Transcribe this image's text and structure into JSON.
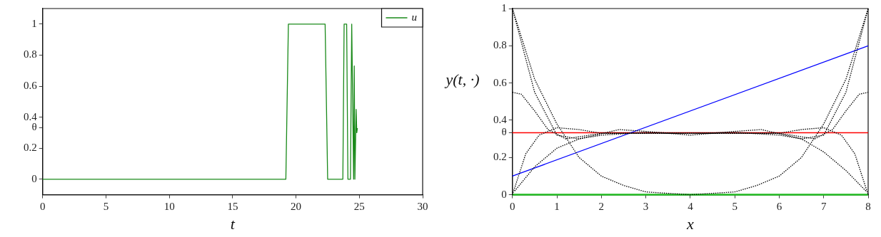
{
  "chart_data": [
    {
      "type": "line",
      "xlabel": "t",
      "xlim": [
        0,
        30
      ],
      "xticks": [
        0,
        5,
        10,
        15,
        20,
        25,
        30
      ],
      "ylim": [
        -0.1,
        1.1
      ],
      "yticks": [
        0,
        0.2,
        {
          "value": 0.333,
          "label": "θ"
        },
        0.4,
        0.6,
        0.8,
        1
      ],
      "grid": false,
      "legend": "top right",
      "marker": "none",
      "series": [
        {
          "name": "u",
          "color": "#1a8a1a",
          "line_style": "solid",
          "x": [
            0,
            19.2,
            19.4,
            22.3,
            22.5,
            23.7,
            23.8,
            24.0,
            24.1,
            24.3,
            24.4,
            24.55,
            24.6,
            24.65,
            24.75,
            24.8,
            24.85
          ],
          "values": [
            0,
            0,
            1,
            1,
            0,
            0,
            1,
            1,
            0,
            0,
            1,
            0,
            0.73,
            0,
            0.45,
            0.3,
            0.33
          ]
        }
      ]
    },
    {
      "type": "line",
      "xlabel": "x",
      "ylabel": "y(t, ·)",
      "xlim": [
        0,
        8
      ],
      "xticks": [
        0,
        1,
        2,
        3,
        4,
        5,
        6,
        7,
        8
      ],
      "ylim": [
        0,
        1
      ],
      "yticks": [
        0,
        0.2,
        {
          "value": 0.333,
          "label": "θ"
        },
        0.4,
        0.6,
        0.8,
        1
      ],
      "grid": false,
      "legend": false,
      "marker": "none",
      "series": [
        {
          "color": "#000000",
          "line_style": "dotted",
          "x": [
            0,
            0.5,
            1,
            1.5,
            2,
            2.5,
            3,
            4,
            5,
            5.5,
            6,
            6.5,
            7,
            7.5,
            8
          ],
          "values": [
            1,
            0.62,
            0.38,
            0.2,
            0.1,
            0.05,
            0.015,
            0,
            0.015,
            0.05,
            0.1,
            0.2,
            0.38,
            0.62,
            1
          ]
        },
        {
          "color": "#000000",
          "line_style": "dotted",
          "x": [
            0,
            0.5,
            1,
            1.5,
            2,
            3,
            4,
            5,
            6,
            6.5,
            7,
            7.5,
            8
          ],
          "values": [
            1,
            0.55,
            0.32,
            0.3,
            0.32,
            0.335,
            0.33,
            0.335,
            0.32,
            0.3,
            0.32,
            0.55,
            1
          ]
        },
        {
          "color": "#000000",
          "line_style": "dotted",
          "x": [
            0,
            0.2,
            0.5,
            0.8,
            1.2,
            2,
            4,
            6,
            6.8,
            7.2,
            7.5,
            7.8,
            8
          ],
          "values": [
            0.55,
            0.54,
            0.45,
            0.35,
            0.3,
            0.33,
            0.33,
            0.33,
            0.3,
            0.35,
            0.45,
            0.54,
            0.55
          ]
        },
        {
          "color": "#000000",
          "line_style": "dotted",
          "x": [
            0,
            0.3,
            0.6,
            1,
            1.5,
            2,
            4,
            6,
            6.5,
            7,
            7.4,
            7.7,
            8
          ],
          "values": [
            0,
            0.22,
            0.32,
            0.36,
            0.35,
            0.33,
            0.33,
            0.33,
            0.35,
            0.36,
            0.32,
            0.22,
            0
          ]
        },
        {
          "color": "#000000",
          "line_style": "dotted",
          "x": [
            0.05,
            0.5,
            1,
            1.5,
            2.4,
            3,
            4,
            5,
            5.6,
            6.5,
            7,
            7.5,
            7.95
          ],
          "values": [
            0.02,
            0.15,
            0.25,
            0.3,
            0.35,
            0.34,
            0.32,
            0.34,
            0.35,
            0.3,
            0.23,
            0.13,
            0.02
          ]
        },
        {
          "color": "#0000ff",
          "line_style": "solid",
          "x": [
            0,
            8
          ],
          "values": [
            0.1,
            0.8
          ]
        },
        {
          "color": "#ff0000",
          "line_style": "solid",
          "x": [
            0,
            8
          ],
          "values": [
            0.333,
            0.333
          ]
        },
        {
          "color": "#22bb22",
          "line_style": "solid",
          "x": [
            0,
            8
          ],
          "values": [
            0,
            0
          ]
        }
      ]
    }
  ]
}
